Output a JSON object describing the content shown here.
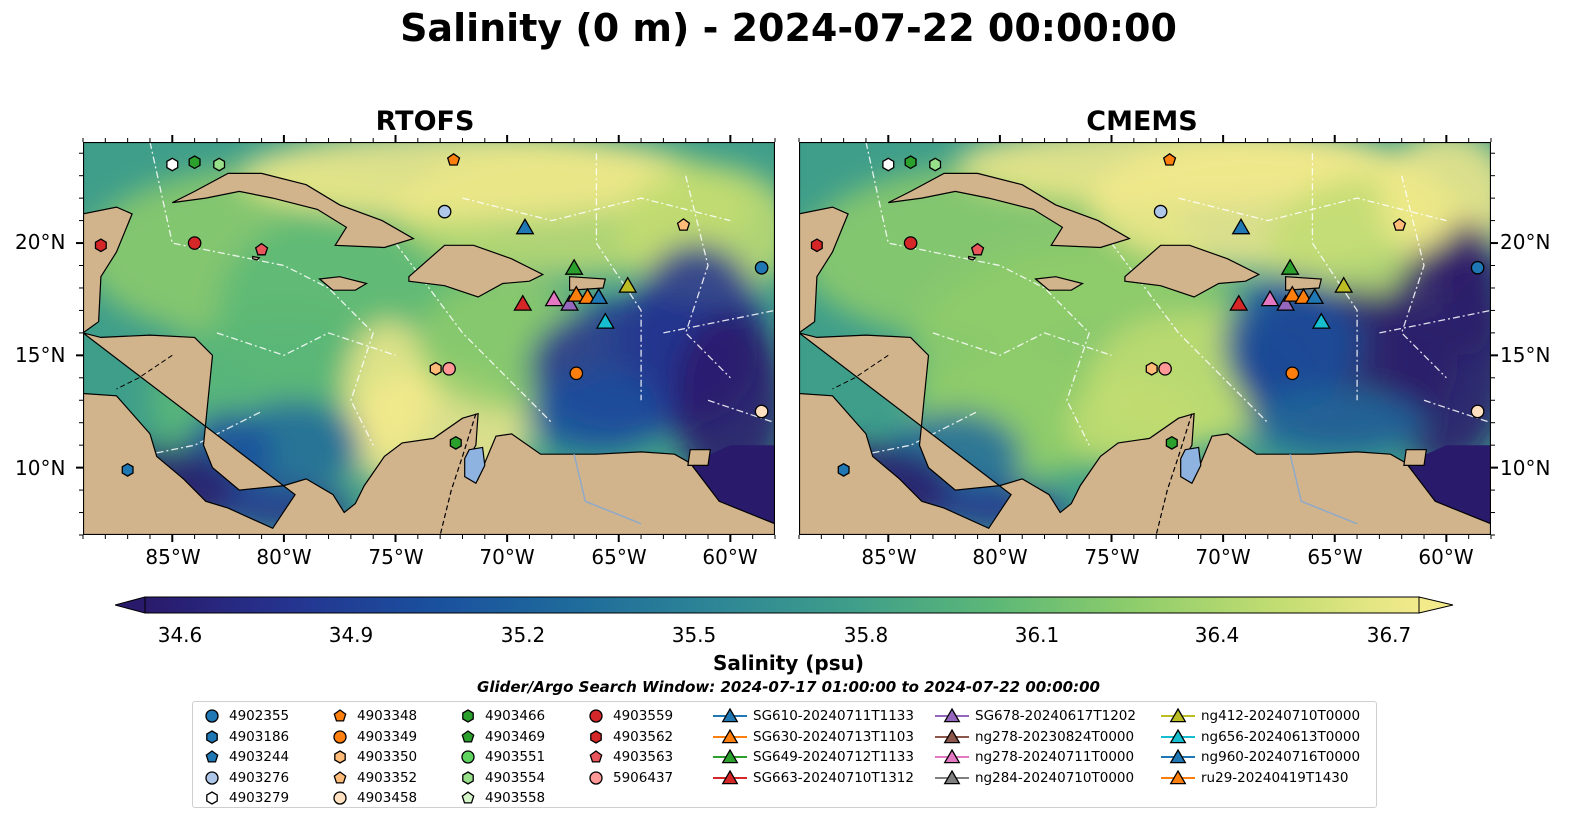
{
  "title": "Salinity (0 m) - 2024-07-22 00:00:00",
  "panels": [
    {
      "title": "RTOFS"
    },
    {
      "title": "CMEMS"
    }
  ],
  "lat_labels": [
    "20°N",
    "15°N",
    "10°N"
  ],
  "lon_labels": [
    "85°W",
    "80°W",
    "75°W",
    "70°W",
    "65°W",
    "60°W"
  ],
  "map_extent": {
    "lon": [
      -89,
      -58
    ],
    "lat": [
      7,
      24.5
    ]
  },
  "colorbar": {
    "label": "Salinity (psu)",
    "ticks": [
      "34.6",
      "34.9",
      "35.2",
      "35.5",
      "35.8",
      "36.1",
      "36.4",
      "36.7"
    ],
    "range": [
      34.6,
      36.7
    ],
    "colors": [
      "#2a1a6b",
      "#25338f",
      "#1a4f9e",
      "#1e6a9c",
      "#2d8596",
      "#3f9e8a",
      "#5cb877",
      "#8fcd6b",
      "#c2dd72",
      "#f3ea8c"
    ]
  },
  "search_window": "Glider/Argo Search Window: 2024-07-17 01:00:00 to 2024-07-22 00:00:00",
  "colors": {
    "land": "#d2b48c",
    "lake": "#8fb3e0",
    "ocean_deep": "#2a1a6b"
  },
  "legend": {
    "columns": [
      [
        {
          "label": "4902355",
          "shape": "circle",
          "color": "#1f77b4"
        },
        {
          "label": "4903186",
          "shape": "hexagon",
          "color": "#1f77b4"
        },
        {
          "label": "4903244",
          "shape": "pentagon",
          "color": "#1f77b4"
        },
        {
          "label": "4903276",
          "shape": "circle",
          "color": "#aec7e8"
        },
        {
          "label": "4903279",
          "shape": "hexagon",
          "color": "#ffffff"
        }
      ],
      [
        {
          "label": "4903348",
          "shape": "pentagon",
          "color": "#ff7f0e"
        },
        {
          "label": "4903349",
          "shape": "circle",
          "color": "#ff7f0e"
        },
        {
          "label": "4903350",
          "shape": "hexagon",
          "color": "#ffbb78"
        },
        {
          "label": "4903352",
          "shape": "pentagon",
          "color": "#ffbb78"
        },
        {
          "label": "4903458",
          "shape": "circle",
          "color": "#ffe0c0"
        }
      ],
      [
        {
          "label": "4903466",
          "shape": "hexagon",
          "color": "#2ca02c"
        },
        {
          "label": "4903469",
          "shape": "pentagon",
          "color": "#2ca02c"
        },
        {
          "label": "4903551",
          "shape": "circle",
          "color": "#5fd35f"
        },
        {
          "label": "4903554",
          "shape": "hexagon",
          "color": "#98df8a"
        },
        {
          "label": "4903558",
          "shape": "pentagon",
          "color": "#d4f5c8"
        }
      ],
      [
        {
          "label": "4903559",
          "shape": "circle",
          "color": "#d62728"
        },
        {
          "label": "4903562",
          "shape": "hexagon",
          "color": "#d62728"
        },
        {
          "label": "4903563",
          "shape": "pentagon",
          "color": "#e8555a"
        },
        {
          "label": "5906437",
          "shape": "circle",
          "color": "#ff9896"
        }
      ],
      [
        {
          "label": "SG610-20240711T1133",
          "shape": "triangle",
          "color": "#1f77b4"
        },
        {
          "label": "SG630-20240713T1103",
          "shape": "triangle",
          "color": "#ff7f0e"
        },
        {
          "label": "SG649-20240712T1133",
          "shape": "triangle",
          "color": "#2ca02c"
        },
        {
          "label": "SG663-20240710T1312",
          "shape": "triangle",
          "color": "#d62728"
        }
      ],
      [
        {
          "label": "SG678-20240617T1202",
          "shape": "triangle",
          "color": "#9467bd"
        },
        {
          "label": "ng278-20230824T0000",
          "shape": "triangle",
          "color": "#8c564b"
        },
        {
          "label": "ng278-20240711T0000",
          "shape": "triangle",
          "color": "#e377c2"
        },
        {
          "label": "ng284-20240710T0000",
          "shape": "triangle",
          "color": "#7f7f7f"
        }
      ],
      [
        {
          "label": "ng412-20240710T0000",
          "shape": "triangle",
          "color": "#bcbd22"
        },
        {
          "label": "ng656-20240613T0000",
          "shape": "triangle",
          "color": "#17becf"
        },
        {
          "label": "ng960-20240716T0000",
          "shape": "triangle",
          "color": "#1f77b4"
        },
        {
          "label": "ru29-20240419T1430",
          "shape": "triangle",
          "color": "#ff7f0e"
        }
      ]
    ]
  },
  "markers": [
    {
      "lon": -88.2,
      "lat": 19.9,
      "shape": "hexagon",
      "color": "#d62728"
    },
    {
      "lon": -84.0,
      "lat": 20.0,
      "shape": "circle",
      "color": "#d62728"
    },
    {
      "lon": -81.0,
      "lat": 19.7,
      "shape": "pentagon",
      "color": "#e8555a"
    },
    {
      "lon": -85.0,
      "lat": 23.5,
      "shape": "hexagon",
      "color": "#ffffff"
    },
    {
      "lon": -84.0,
      "lat": 23.6,
      "shape": "hexagon",
      "color": "#2ca02c"
    },
    {
      "lon": -82.9,
      "lat": 23.5,
      "shape": "hexagon",
      "color": "#98df8a"
    },
    {
      "lon": -72.4,
      "lat": 23.7,
      "shape": "pentagon",
      "color": "#ff7f0e"
    },
    {
      "lon": -72.8,
      "lat": 21.4,
      "shape": "circle",
      "color": "#aec7e8"
    },
    {
      "lon": -62.1,
      "lat": 20.8,
      "shape": "pentagon",
      "color": "#ffbb78"
    },
    {
      "lon": -58.6,
      "lat": 18.9,
      "shape": "circle",
      "color": "#1f77b4"
    },
    {
      "lon": -73.2,
      "lat": 14.4,
      "shape": "hexagon",
      "color": "#ffbb78"
    },
    {
      "lon": -72.6,
      "lat": 14.4,
      "shape": "circle",
      "color": "#ff9896"
    },
    {
      "lon": -66.9,
      "lat": 14.2,
      "shape": "circle",
      "color": "#ff7f0e"
    },
    {
      "lon": -58.6,
      "lat": 12.5,
      "shape": "circle",
      "color": "#ffe0c0"
    },
    {
      "lon": -72.3,
      "lat": 11.1,
      "shape": "hexagon",
      "color": "#2ca02c"
    },
    {
      "lon": -87.0,
      "lat": 9.9,
      "shape": "hexagon",
      "color": "#1f77b4"
    },
    {
      "lon": -69.2,
      "lat": 20.7,
      "shape": "triangle",
      "color": "#1f77b4"
    },
    {
      "lon": -69.3,
      "lat": 17.3,
      "shape": "triangle",
      "color": "#d62728"
    },
    {
      "lon": -67.9,
      "lat": 17.5,
      "shape": "triangle",
      "color": "#e377c2"
    },
    {
      "lon": -67.2,
      "lat": 17.3,
      "shape": "triangle",
      "color": "#9467bd"
    },
    {
      "lon": -67.0,
      "lat": 18.9,
      "shape": "triangle",
      "color": "#2ca02c"
    },
    {
      "lon": -66.9,
      "lat": 17.7,
      "shape": "triangle",
      "color": "#ff7f0e"
    },
    {
      "lon": -66.4,
      "lat": 17.6,
      "shape": "triangle",
      "color": "#ff7f0e"
    },
    {
      "lon": -65.9,
      "lat": 17.6,
      "shape": "triangle",
      "color": "#1f77b4"
    },
    {
      "lon": -65.6,
      "lat": 16.5,
      "shape": "triangle",
      "color": "#17becf"
    },
    {
      "lon": -64.6,
      "lat": 18.1,
      "shape": "triangle",
      "color": "#bcbd22"
    }
  ]
}
